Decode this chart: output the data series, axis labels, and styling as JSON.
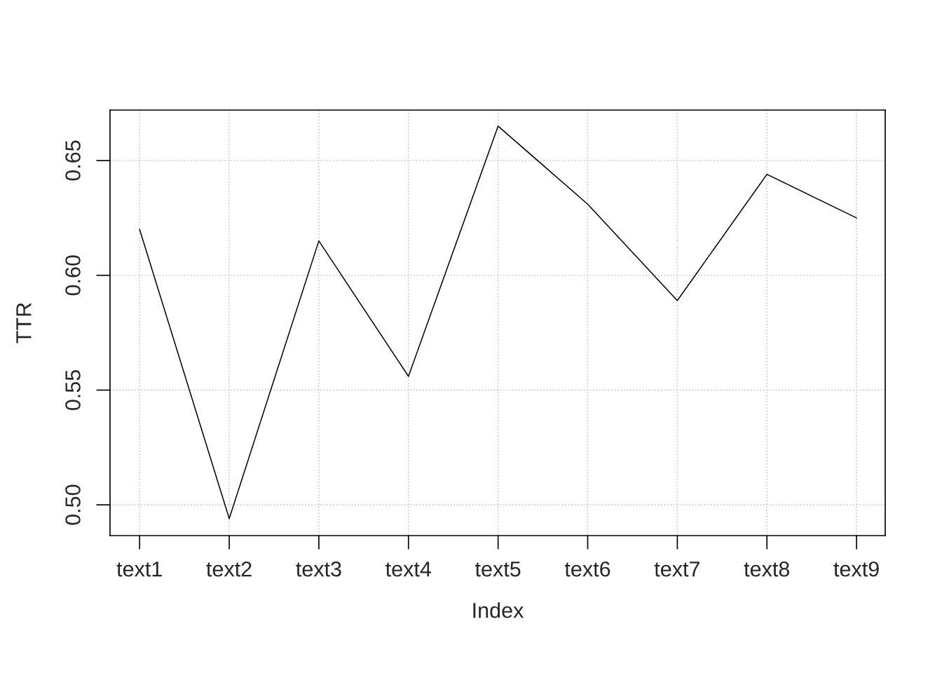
{
  "chart_data": {
    "type": "line",
    "xlabel": "Index",
    "ylabel": "TTR",
    "categories": [
      "text1",
      "text2",
      "text3",
      "text4",
      "text5",
      "text6",
      "text7",
      "text8",
      "text9"
    ],
    "series": [
      {
        "color": "#000000",
        "values": [
          0.62,
          0.494,
          0.615,
          0.556,
          0.665,
          0.631,
          0.589,
          0.644,
          0.625
        ]
      }
    ],
    "ylim": [
      0.4866,
      0.672
    ],
    "yticks": [
      {
        "value": 0.5,
        "label": "0.50"
      },
      {
        "value": 0.55,
        "label": "0.55"
      },
      {
        "value": 0.6,
        "label": "0.60"
      },
      {
        "value": 0.65,
        "label": "0.65"
      }
    ],
    "grid": true,
    "marker": "none",
    "line_style": "solid"
  }
}
